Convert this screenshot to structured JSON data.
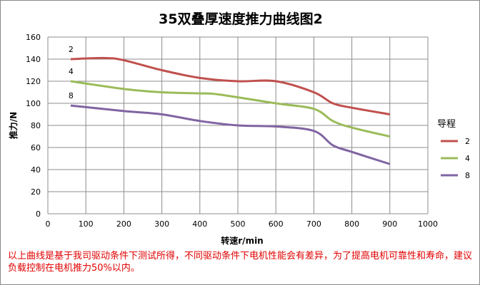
{
  "chart_data": {
    "type": "line",
    "title": "35双叠厚速度推力曲线图2",
    "xlabel": "转速r/min",
    "ylabel": "推力/N",
    "xlim": [
      0,
      1000
    ],
    "ylim": [
      0,
      160
    ],
    "xticks": [
      0,
      100,
      200,
      300,
      400,
      500,
      600,
      700,
      800,
      900,
      1000
    ],
    "yticks": [
      0,
      20,
      40,
      60,
      80,
      100,
      120,
      140,
      160
    ],
    "grid": true,
    "legend": {
      "title": "导程",
      "placement": "right"
    },
    "series": [
      {
        "name": "2",
        "color": "#c0504d",
        "x": [
          60,
          150,
          200,
          300,
          400,
          500,
          600,
          700,
          750,
          800,
          900
        ],
        "y": [
          140,
          141,
          139,
          130,
          123,
          120,
          120,
          110,
          100,
          96,
          90
        ]
      },
      {
        "name": "4",
        "color": "#9bbb59",
        "x": [
          60,
          200,
          300,
          400,
          450,
          600,
          700,
          750,
          800,
          900
        ],
        "y": [
          120,
          113,
          110,
          109,
          108,
          100,
          95,
          84,
          78,
          70
        ]
      },
      {
        "name": "8",
        "color": "#8064a2",
        "x": [
          60,
          200,
          300,
          400,
          500,
          600,
          700,
          750,
          800,
          900
        ],
        "y": [
          98,
          93,
          90,
          84,
          80,
          79,
          75,
          62,
          56,
          45
        ]
      }
    ]
  },
  "note": "以上曲线是基于我司驱动条件下测试所得，不同驱动条件下电机性能会有差异，为了提高电机可靠性和寿命，建议负载控制在电机推力50%以内。"
}
